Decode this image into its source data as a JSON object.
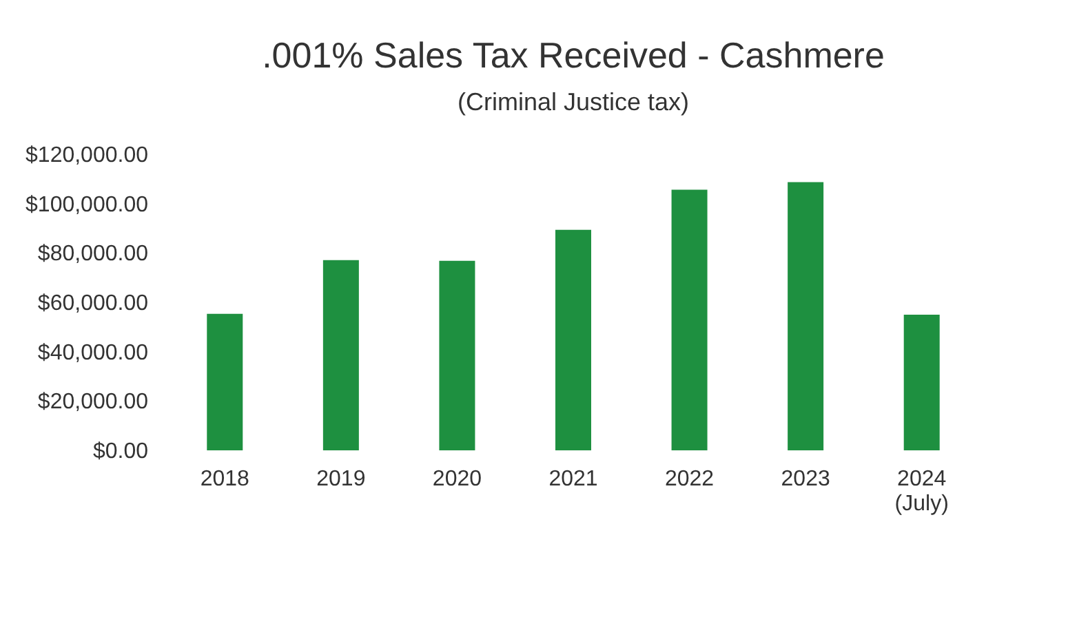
{
  "chart_data": {
    "type": "bar",
    "title": ".001% Sales Tax Received - Cashmere",
    "subtitle": "(Criminal Justice tax)",
    "categories": [
      "2018",
      "2019",
      "2020",
      "2021",
      "2022",
      "2023",
      "2024 (July)"
    ],
    "values": [
      55300,
      77100,
      76800,
      89400,
      105600,
      108700,
      55000
    ],
    "color": "#1e9040",
    "ylim": [
      0,
      120000
    ],
    "yticks": [
      {
        "value": 0,
        "label": "$0.00"
      },
      {
        "value": 20000,
        "label": "$20,000.00"
      },
      {
        "value": 40000,
        "label": "$40,000.00"
      },
      {
        "value": 60000,
        "label": "$60,000.00"
      },
      {
        "value": 80000,
        "label": "$80,000.00"
      },
      {
        "value": 100000,
        "label": "$100,000.00"
      },
      {
        "value": 120000,
        "label": "$120,000.00"
      }
    ],
    "grid": false
  }
}
